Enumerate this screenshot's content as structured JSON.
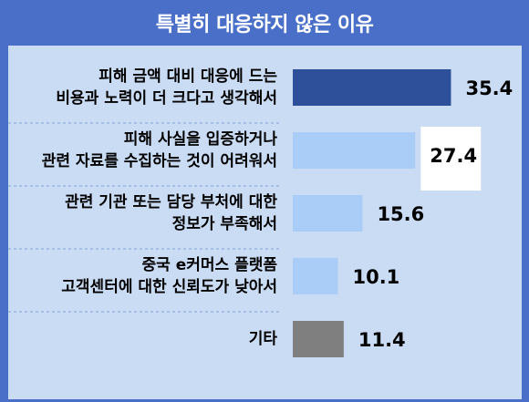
{
  "chart_data": {
    "type": "bar",
    "orientation": "horizontal",
    "title": "특별히 대응하지 않은 이유",
    "categories": [
      [
        "피해 금액 대비 대응에 드는",
        "비용과 노력이 더 크다고 생각해서"
      ],
      [
        "피해 사실을 입증하거나",
        "관련 자료를 수집하는 것이 어려워서"
      ],
      [
        "관련 기관 또는 담당 부처에 대한",
        "정보가 부족해서"
      ],
      [
        "중국 e커머스 플랫폼",
        "고객센터에 대한 신뢰도가 낮아서"
      ],
      [
        "기타"
      ]
    ],
    "values": [
      35.4,
      27.4,
      15.6,
      10.1,
      11.4
    ],
    "value_labels": [
      "35.4",
      "27.4",
      "15.6",
      "10.1",
      "11.4"
    ],
    "bar_colors": [
      "#2e4f9a",
      "#a9cdf6",
      "#a9cdf6",
      "#a9cdf6",
      "#7f7f7f"
    ],
    "highlighted_index": 1,
    "grid": false,
    "xlabel": "",
    "ylabel": "",
    "xlim": [
      0,
      40
    ]
  },
  "colors": {
    "title_background": "#4a6fc8",
    "plot_background": "#c9dcf4",
    "separator": "#9bb6de",
    "highlight_box": "#ffffff"
  }
}
